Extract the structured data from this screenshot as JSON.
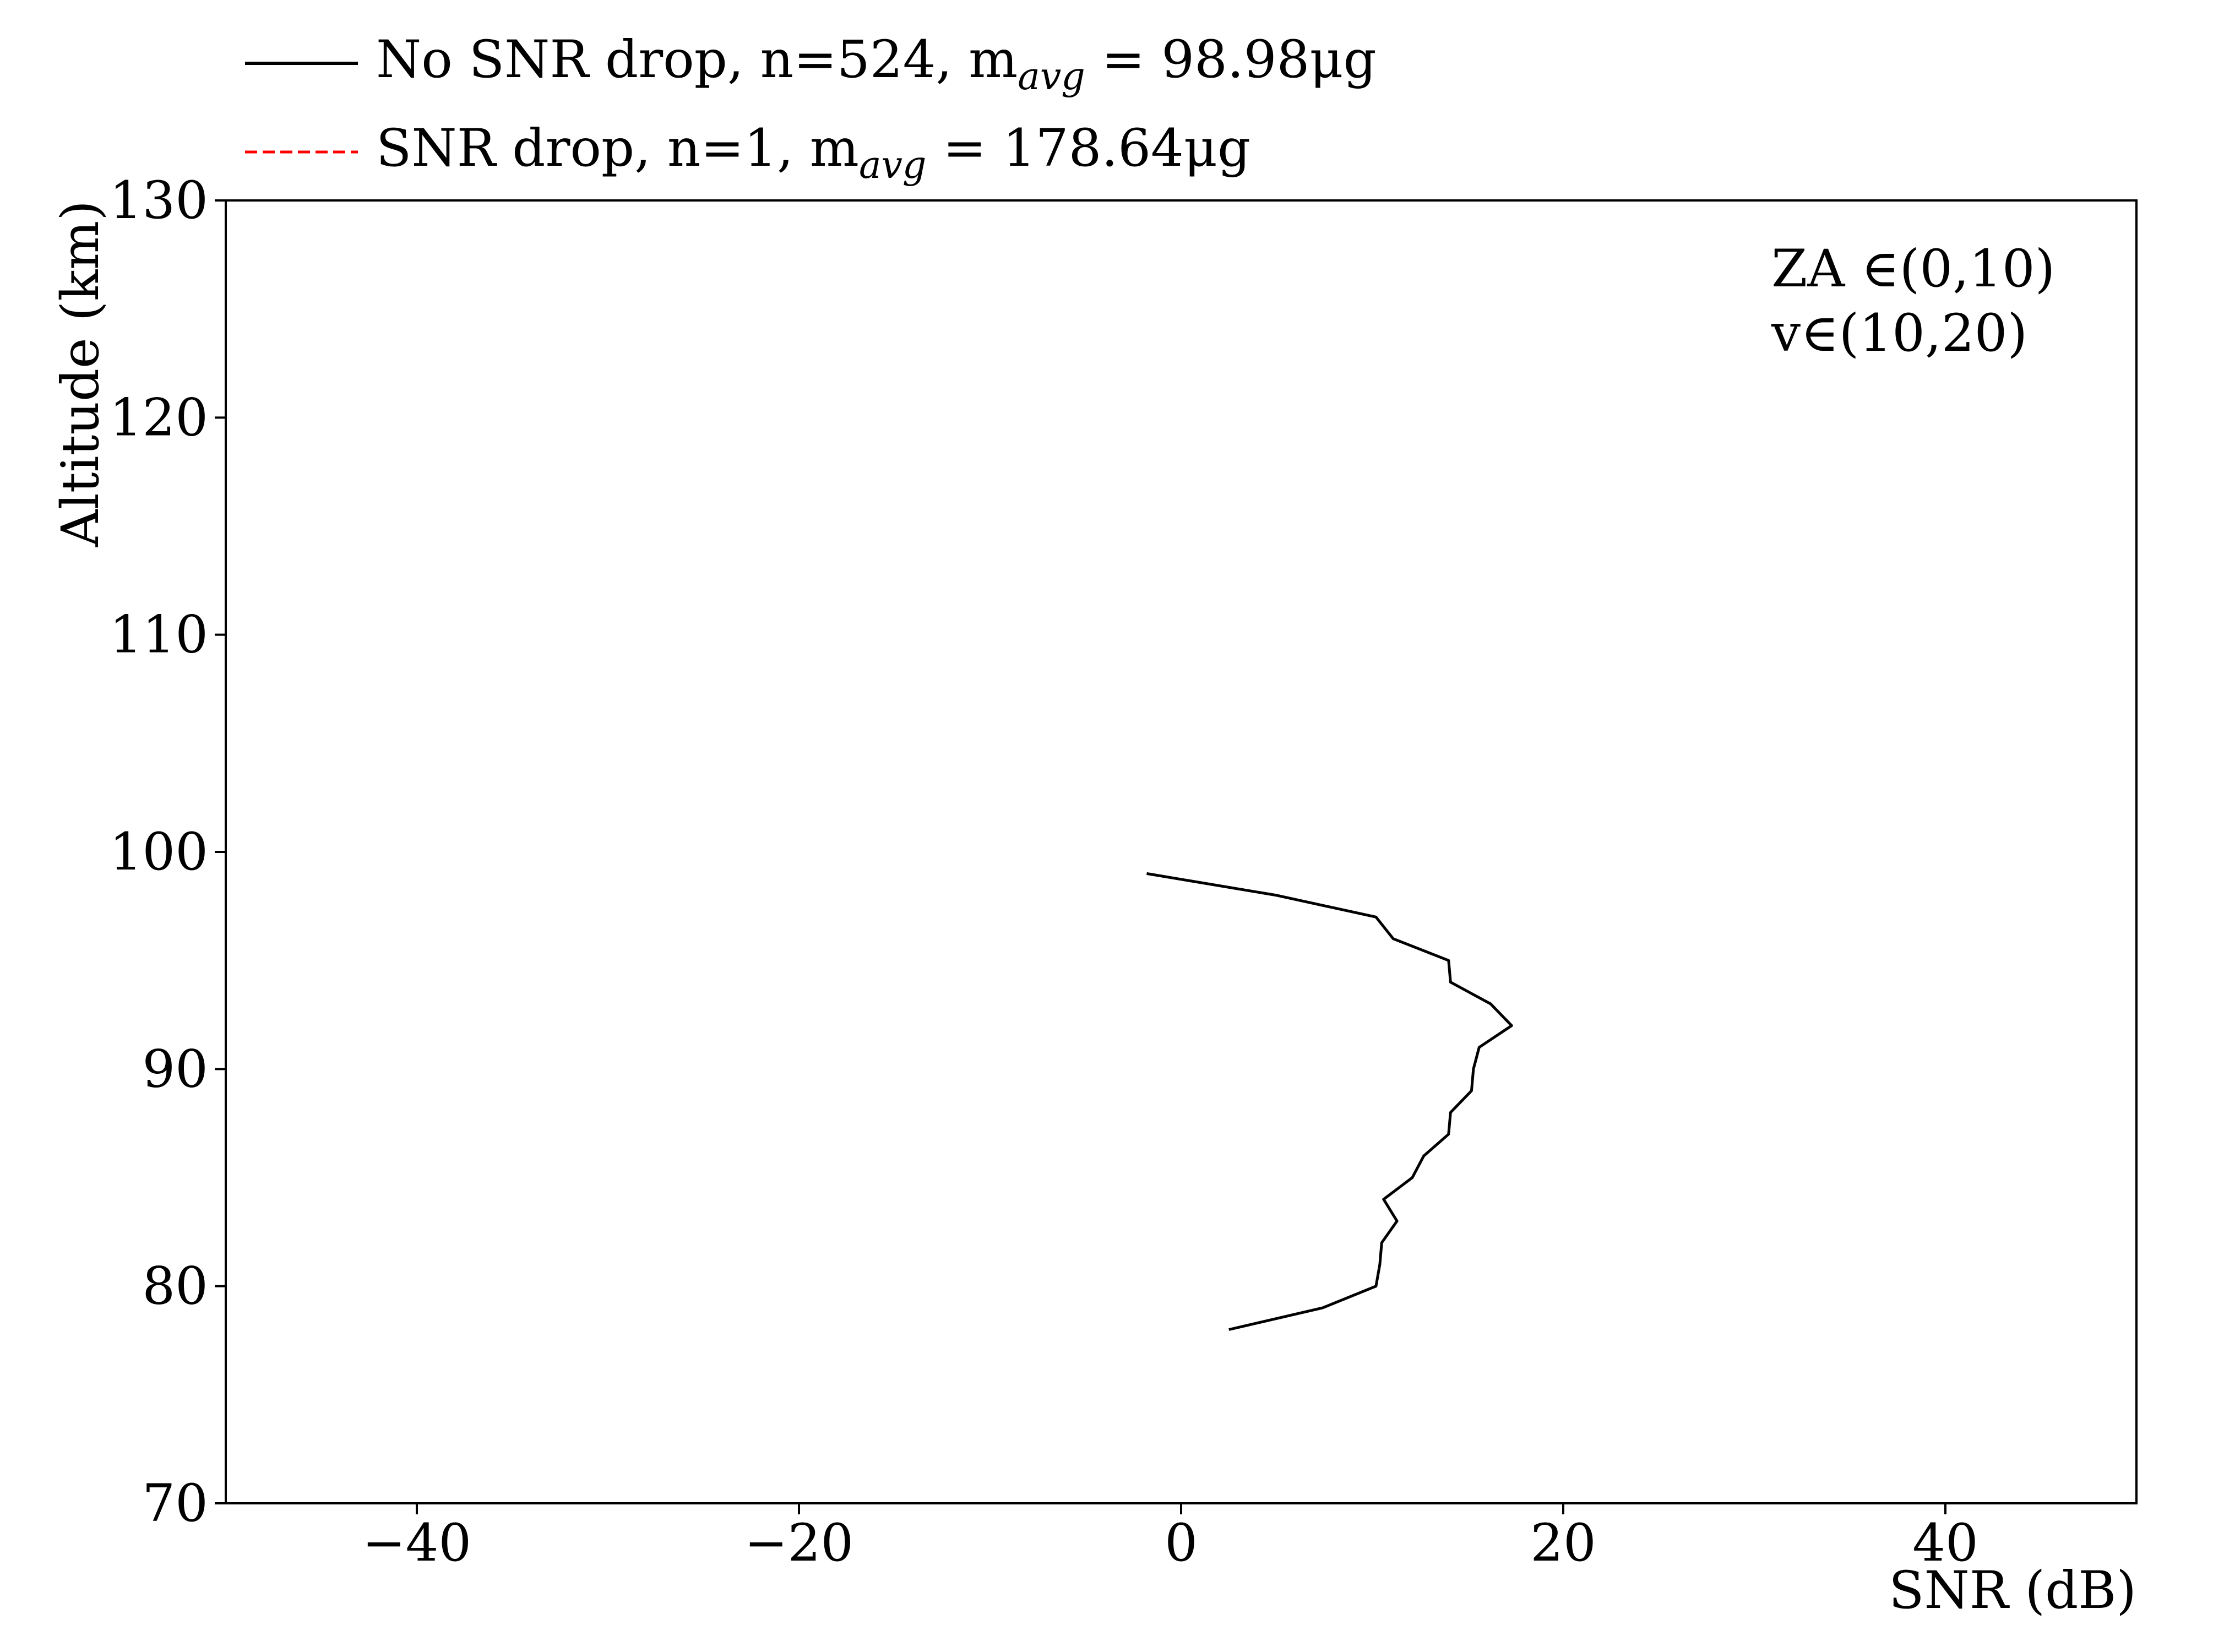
{
  "chart_data": {
    "type": "line",
    "xlabel": "SNR (dB)",
    "ylabel": "Altitude (km)",
    "xlim": [
      -50,
      50
    ],
    "ylim": [
      70,
      130
    ],
    "x_ticks": [
      -40,
      -20,
      0,
      20,
      40
    ],
    "x_tick_labels": [
      "−40",
      "−20",
      "0",
      "20",
      "40"
    ],
    "y_ticks": [
      70,
      80,
      90,
      100,
      110,
      120,
      130
    ],
    "y_tick_labels": [
      "70",
      "80",
      "90",
      "100",
      "110",
      "120",
      "130"
    ],
    "grid": false,
    "legend_position": "top-left, above plot",
    "annotation": {
      "line1": "ZA ∈(0,10)",
      "line2": "v∈(10,20)"
    },
    "series": [
      {
        "legend": {
          "prefix": "No SNR drop,  n=524,  m",
          "subscript": "avg",
          "suffix": " = 98.98μg"
        },
        "color": "#000000",
        "style": "solid",
        "points": [
          {
            "x": -1.8,
            "y": 99
          },
          {
            "x": 5.0,
            "y": 98
          },
          {
            "x": 10.2,
            "y": 97
          },
          {
            "x": 11.1,
            "y": 96
          },
          {
            "x": 14.0,
            "y": 95
          },
          {
            "x": 14.1,
            "y": 94
          },
          {
            "x": 16.2,
            "y": 93
          },
          {
            "x": 17.3,
            "y": 92
          },
          {
            "x": 15.6,
            "y": 91
          },
          {
            "x": 15.3,
            "y": 90
          },
          {
            "x": 15.2,
            "y": 89
          },
          {
            "x": 14.1,
            "y": 88
          },
          {
            "x": 14.0,
            "y": 87
          },
          {
            "x": 12.7,
            "y": 86
          },
          {
            "x": 12.1,
            "y": 85
          },
          {
            "x": 10.6,
            "y": 84
          },
          {
            "x": 11.3,
            "y": 83
          },
          {
            "x": 10.5,
            "y": 82
          },
          {
            "x": 10.4,
            "y": 81
          },
          {
            "x": 10.2,
            "y": 80
          },
          {
            "x": 7.4,
            "y": 79
          },
          {
            "x": 2.5,
            "y": 78
          }
        ]
      },
      {
        "legend": {
          "prefix": "SNR drop,  n=1,  m",
          "subscript": "avg",
          "suffix": " = 178.64μg"
        },
        "color": "#ff0000",
        "style": "dashed",
        "points": []
      }
    ]
  }
}
